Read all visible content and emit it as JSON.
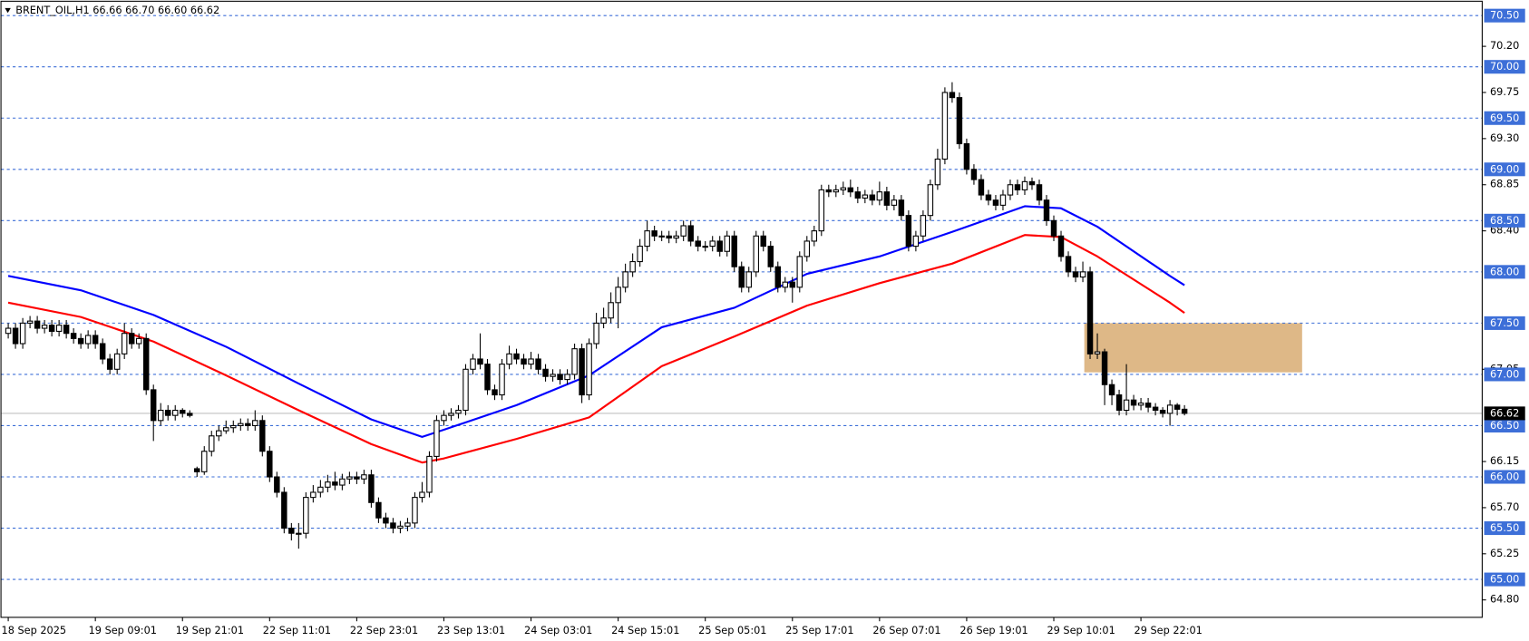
{
  "chart_data": {
    "type": "candlestick",
    "title": "BRENT_OIL,H1  66.66 66.70 66.60 66.62",
    "xlim": [
      -1,
      203
    ],
    "ylim": [
      64.63,
      70.64
    ],
    "up_color": "#ffffff",
    "down_color": "#000000",
    "categories": [
      "18 Sep 2025",
      null,
      null,
      null,
      null,
      null,
      null,
      null,
      null,
      null,
      null,
      null,
      "19 Sep 09:01",
      null,
      null,
      null,
      null,
      null,
      null,
      null,
      null,
      null,
      null,
      null,
      "19 Sep 21:01",
      null,
      null,
      null,
      null,
      null,
      null,
      null,
      null,
      null,
      null,
      null,
      "22 Sep 11:01",
      null,
      null,
      null,
      null,
      null,
      null,
      null,
      null,
      null,
      null,
      null,
      "22 Sep 23:01",
      null,
      null,
      null,
      null,
      null,
      null,
      null,
      null,
      null,
      null,
      null,
      "23 Sep 13:01",
      null,
      null,
      null,
      null,
      null,
      null,
      null,
      null,
      null,
      null,
      null,
      "24 Sep 03:01",
      null,
      null,
      null,
      null,
      null,
      null,
      null,
      null,
      null,
      null,
      null,
      "24 Sep 15:01",
      null,
      null,
      null,
      null,
      null,
      null,
      null,
      null,
      null,
      null,
      null,
      "25 Sep 05:01",
      null,
      null,
      null,
      null,
      null,
      null,
      null,
      null,
      null,
      null,
      null,
      "25 Sep 17:01",
      null,
      null,
      null,
      null,
      null,
      null,
      null,
      null,
      null,
      null,
      null,
      "26 Sep 07:01",
      null,
      null,
      null,
      null,
      null,
      null,
      null,
      null,
      null,
      null,
      null,
      "26 Sep 19:01",
      null,
      null,
      null,
      null,
      null,
      null,
      null,
      null,
      null,
      null,
      null,
      "29 Sep 10:01",
      null,
      null,
      null,
      null,
      null,
      null,
      null,
      null,
      null,
      null,
      null,
      "29 Sep 22:01",
      null,
      null,
      null,
      null,
      null,
      null
    ],
    "open": [
      67.4,
      67.45,
      67.3,
      67.5,
      67.52,
      67.45,
      67.48,
      67.42,
      67.48,
      67.4,
      67.35,
      67.3,
      67.38,
      67.3,
      67.15,
      67.05,
      67.2,
      67.4,
      67.3,
      67.35,
      66.85,
      66.55,
      66.65,
      66.6,
      66.65,
      66.62,
      66.08,
      66.05,
      66.25,
      66.4,
      66.45,
      66.48,
      66.5,
      66.52,
      66.5,
      66.55,
      66.25,
      66.0,
      65.85,
      65.5,
      65.45,
      65.45,
      65.8,
      65.85,
      65.9,
      65.95,
      65.92,
      65.98,
      66.0,
      65.98,
      66.02,
      65.75,
      65.6,
      65.55,
      65.5,
      65.52,
      65.55,
      65.8,
      65.85,
      66.2,
      66.55,
      66.6,
      66.62,
      66.65,
      67.05,
      67.15,
      67.1,
      66.85,
      66.8,
      67.1,
      67.2,
      67.15,
      67.1,
      67.15,
      67.05,
      66.98,
      67.0,
      66.95,
      67.0,
      67.25,
      66.8,
      67.3,
      67.5,
      67.55,
      67.7,
      67.85,
      68.0,
      68.1,
      68.25,
      68.4,
      68.35,
      68.35,
      68.33,
      68.35,
      68.45,
      68.3,
      68.25,
      68.25,
      68.3,
      68.2,
      68.35,
      68.05,
      67.85,
      68.0,
      68.35,
      68.25,
      68.05,
      67.85,
      67.9,
      67.85,
      68.15,
      68.3,
      68.4,
      68.8,
      68.78,
      68.8,
      68.82,
      68.78,
      68.72,
      68.75,
      68.7,
      68.78,
      68.65,
      68.7,
      68.55,
      68.25,
      68.35,
      68.55,
      68.85,
      69.1,
      69.75,
      69.7,
      69.25,
      69.0,
      68.9,
      68.75,
      68.7,
      68.65,
      68.75,
      68.85,
      68.8,
      68.88,
      68.85,
      68.7,
      68.5,
      68.35,
      68.15,
      68.0,
      67.95,
      68.0,
      67.2,
      67.22,
      66.9,
      66.8,
      66.65,
      66.75,
      66.7,
      66.72,
      66.68,
      66.65,
      66.62,
      66.7,
      66.66
    ],
    "high": [
      67.5,
      67.5,
      67.55,
      67.57,
      67.57,
      67.53,
      67.53,
      67.53,
      67.53,
      67.45,
      67.4,
      67.43,
      67.43,
      67.35,
      67.2,
      67.25,
      67.5,
      67.45,
      67.4,
      67.4,
      66.9,
      66.72,
      66.7,
      66.7,
      66.67,
      66.65,
      66.1,
      66.3,
      66.45,
      66.5,
      66.55,
      66.55,
      66.57,
      66.57,
      66.65,
      66.6,
      66.3,
      66.05,
      65.9,
      65.55,
      65.55,
      65.85,
      65.92,
      65.97,
      66.02,
      66.05,
      66.03,
      66.05,
      66.05,
      66.07,
      66.07,
      65.8,
      65.65,
      65.6,
      65.57,
      65.6,
      65.85,
      65.95,
      66.25,
      66.6,
      66.65,
      66.67,
      66.7,
      67.1,
      67.2,
      67.4,
      67.15,
      66.9,
      67.15,
      67.28,
      67.25,
      67.2,
      67.22,
      67.2,
      67.1,
      67.05,
      67.05,
      67.05,
      67.3,
      67.3,
      67.35,
      67.6,
      67.65,
      67.8,
      67.95,
      68.08,
      68.18,
      68.32,
      68.5,
      68.45,
      68.4,
      68.4,
      68.4,
      68.5,
      68.5,
      68.35,
      68.3,
      68.35,
      68.35,
      68.4,
      68.4,
      68.1,
      68.05,
      68.4,
      68.4,
      68.3,
      68.1,
      67.95,
      67.95,
      68.2,
      68.35,
      68.45,
      68.85,
      68.85,
      68.85,
      68.88,
      68.9,
      68.83,
      68.8,
      68.8,
      68.88,
      68.83,
      68.75,
      68.75,
      68.6,
      68.4,
      68.6,
      68.9,
      69.2,
      69.8,
      69.85,
      69.75,
      69.3,
      69.05,
      68.95,
      68.8,
      68.75,
      68.8,
      68.9,
      68.9,
      68.93,
      68.92,
      68.9,
      68.75,
      68.55,
      68.4,
      68.2,
      68.05,
      68.1,
      68.05,
      67.4,
      67.25,
      66.95,
      66.85,
      67.1,
      66.8,
      66.77,
      66.77,
      66.72,
      66.68,
      66.75,
      66.72,
      66.7
    ],
    "low": [
      67.35,
      67.25,
      67.25,
      67.45,
      67.4,
      67.4,
      67.37,
      67.37,
      67.35,
      67.3,
      67.25,
      67.25,
      67.25,
      67.1,
      67.0,
      67.0,
      67.15,
      67.25,
      67.25,
      66.8,
      66.35,
      66.5,
      66.55,
      66.55,
      66.58,
      66.58,
      66.0,
      66.02,
      66.2,
      66.35,
      66.42,
      66.43,
      66.45,
      66.45,
      66.45,
      66.2,
      65.95,
      65.8,
      65.45,
      65.38,
      65.3,
      65.4,
      65.75,
      65.8,
      65.85,
      65.87,
      65.87,
      65.93,
      65.93,
      65.93,
      65.7,
      65.55,
      65.5,
      65.45,
      65.45,
      65.47,
      65.5,
      65.75,
      65.8,
      66.15,
      66.5,
      66.55,
      66.57,
      66.6,
      67.0,
      67.05,
      66.8,
      66.75,
      66.75,
      67.05,
      67.1,
      67.05,
      67.05,
      67.0,
      66.93,
      66.93,
      66.9,
      66.9,
      66.95,
      66.72,
      66.75,
      67.25,
      67.45,
      67.5,
      67.45,
      67.8,
      67.95,
      68.05,
      68.2,
      68.3,
      68.3,
      68.28,
      68.28,
      68.3,
      68.25,
      68.2,
      68.2,
      68.2,
      68.15,
      68.15,
      68.0,
      67.8,
      67.8,
      67.95,
      68.2,
      68.0,
      67.8,
      67.8,
      67.7,
      67.8,
      68.1,
      68.25,
      68.35,
      68.73,
      68.73,
      68.75,
      68.73,
      68.67,
      68.67,
      68.65,
      68.65,
      68.6,
      68.6,
      68.5,
      68.2,
      68.2,
      68.3,
      68.5,
      68.8,
      69.05,
      69.65,
      69.2,
      68.95,
      68.85,
      68.7,
      68.65,
      68.6,
      68.6,
      68.7,
      68.75,
      68.75,
      68.8,
      68.65,
      68.45,
      68.3,
      68.1,
      67.95,
      67.9,
      67.9,
      67.15,
      67.15,
      66.7,
      66.7,
      66.6,
      66.6,
      66.65,
      66.65,
      66.63,
      66.6,
      66.58,
      66.5,
      66.6,
      66.6
    ],
    "close": [
      67.45,
      67.3,
      67.5,
      67.52,
      67.45,
      67.48,
      67.42,
      67.48,
      67.4,
      67.35,
      67.3,
      67.38,
      67.3,
      67.15,
      67.05,
      67.2,
      67.4,
      67.3,
      67.35,
      66.85,
      66.55,
      66.65,
      66.6,
      66.65,
      66.62,
      66.6,
      66.05,
      66.25,
      66.4,
      66.45,
      66.48,
      66.5,
      66.52,
      66.5,
      66.55,
      66.25,
      66.0,
      65.85,
      65.5,
      65.45,
      65.45,
      65.8,
      65.85,
      65.9,
      65.95,
      65.92,
      65.98,
      66.0,
      65.98,
      66.02,
      65.75,
      65.6,
      65.55,
      65.5,
      65.52,
      65.55,
      65.8,
      65.85,
      66.2,
      66.55,
      66.6,
      66.62,
      66.65,
      67.05,
      67.15,
      67.1,
      66.85,
      66.8,
      67.1,
      67.2,
      67.15,
      67.1,
      67.15,
      67.05,
      66.98,
      67.0,
      66.95,
      67.0,
      67.25,
      66.8,
      67.3,
      67.5,
      67.55,
      67.7,
      67.85,
      68.0,
      68.1,
      68.25,
      68.4,
      68.35,
      68.35,
      68.33,
      68.35,
      68.45,
      68.3,
      68.25,
      68.25,
      68.3,
      68.2,
      68.35,
      68.05,
      67.85,
      68.0,
      68.35,
      68.25,
      68.05,
      67.85,
      67.9,
      67.85,
      68.15,
      68.3,
      68.4,
      68.8,
      68.78,
      68.8,
      68.82,
      68.78,
      68.72,
      68.75,
      68.7,
      68.78,
      68.65,
      68.7,
      68.55,
      68.25,
      68.35,
      68.55,
      68.85,
      69.1,
      69.75,
      69.7,
      69.25,
      69.0,
      68.9,
      68.75,
      68.7,
      68.65,
      68.75,
      68.85,
      68.8,
      68.88,
      68.85,
      68.7,
      68.5,
      68.35,
      68.15,
      68.0,
      67.95,
      68.0,
      67.2,
      67.22,
      66.9,
      66.8,
      66.65,
      66.75,
      66.7,
      66.72,
      66.68,
      66.65,
      66.62,
      66.7,
      66.66,
      66.62
    ],
    "series": [
      {
        "color": "#0000ff",
        "x": [
          0,
          10,
          20,
          30,
          40,
          50,
          57,
          60,
          70,
          80,
          90,
          100,
          110,
          120,
          130,
          140,
          145,
          150,
          160,
          162
        ],
        "values": [
          67.96,
          67.82,
          67.58,
          67.27,
          66.91,
          66.56,
          66.39,
          66.46,
          66.7,
          66.99,
          67.46,
          67.65,
          67.98,
          68.15,
          68.39,
          68.64,
          68.62,
          68.44,
          67.96,
          67.87
        ]
      },
      {
        "color": "#ff0000",
        "x": [
          0,
          10,
          20,
          30,
          40,
          50,
          57,
          60,
          70,
          80,
          90,
          100,
          110,
          120,
          130,
          140,
          145,
          150,
          160,
          162
        ],
        "values": [
          67.7,
          67.56,
          67.32,
          66.99,
          66.65,
          66.32,
          66.14,
          66.18,
          66.37,
          66.58,
          67.08,
          67.37,
          67.67,
          67.89,
          68.08,
          68.36,
          68.34,
          68.15,
          67.7,
          67.6
        ]
      }
    ],
    "zone": {
      "x": [
        148.2,
        178.2
      ],
      "y": [
        67.02,
        67.5
      ],
      "color": "#deb887"
    },
    "yticks": [
      {
        "value": 70.2,
        "label": "70.20"
      },
      {
        "value": 69.75,
        "label": "69.75"
      },
      {
        "value": 69.3,
        "label": "69.30"
      },
      {
        "value": 68.85,
        "label": "68.85"
      },
      {
        "value": 68.4,
        "label": "68.40"
      },
      {
        "value": 67.05,
        "label": "67.05"
      },
      {
        "value": 66.15,
        "label": "66.15"
      },
      {
        "value": 65.7,
        "label": "65.70"
      },
      {
        "value": 65.25,
        "label": "65.25"
      },
      {
        "value": 64.8,
        "label": "64.80"
      }
    ],
    "hline_color": "#3d6fd8",
    "hlines": [
      {
        "value": 70.5,
        "label": "70.50"
      },
      {
        "value": 70,
        "label": "70.00"
      },
      {
        "value": 69.5,
        "label": "69.50"
      },
      {
        "value": 69,
        "label": "69.00"
      },
      {
        "value": 68.5,
        "label": "68.50"
      },
      {
        "value": 68,
        "label": "68.00"
      },
      {
        "value": 67.5,
        "label": "67.50"
      },
      {
        "value": 67,
        "label": "67.00"
      },
      {
        "value": 66.5,
        "label": "66.50"
      },
      {
        "value": 66,
        "label": "66.00"
      },
      {
        "value": 65.5,
        "label": "65.50"
      },
      {
        "value": 65,
        "label": "65.00"
      }
    ],
    "current_price": {
      "value": 66.62,
      "label": "66.62"
    }
  }
}
